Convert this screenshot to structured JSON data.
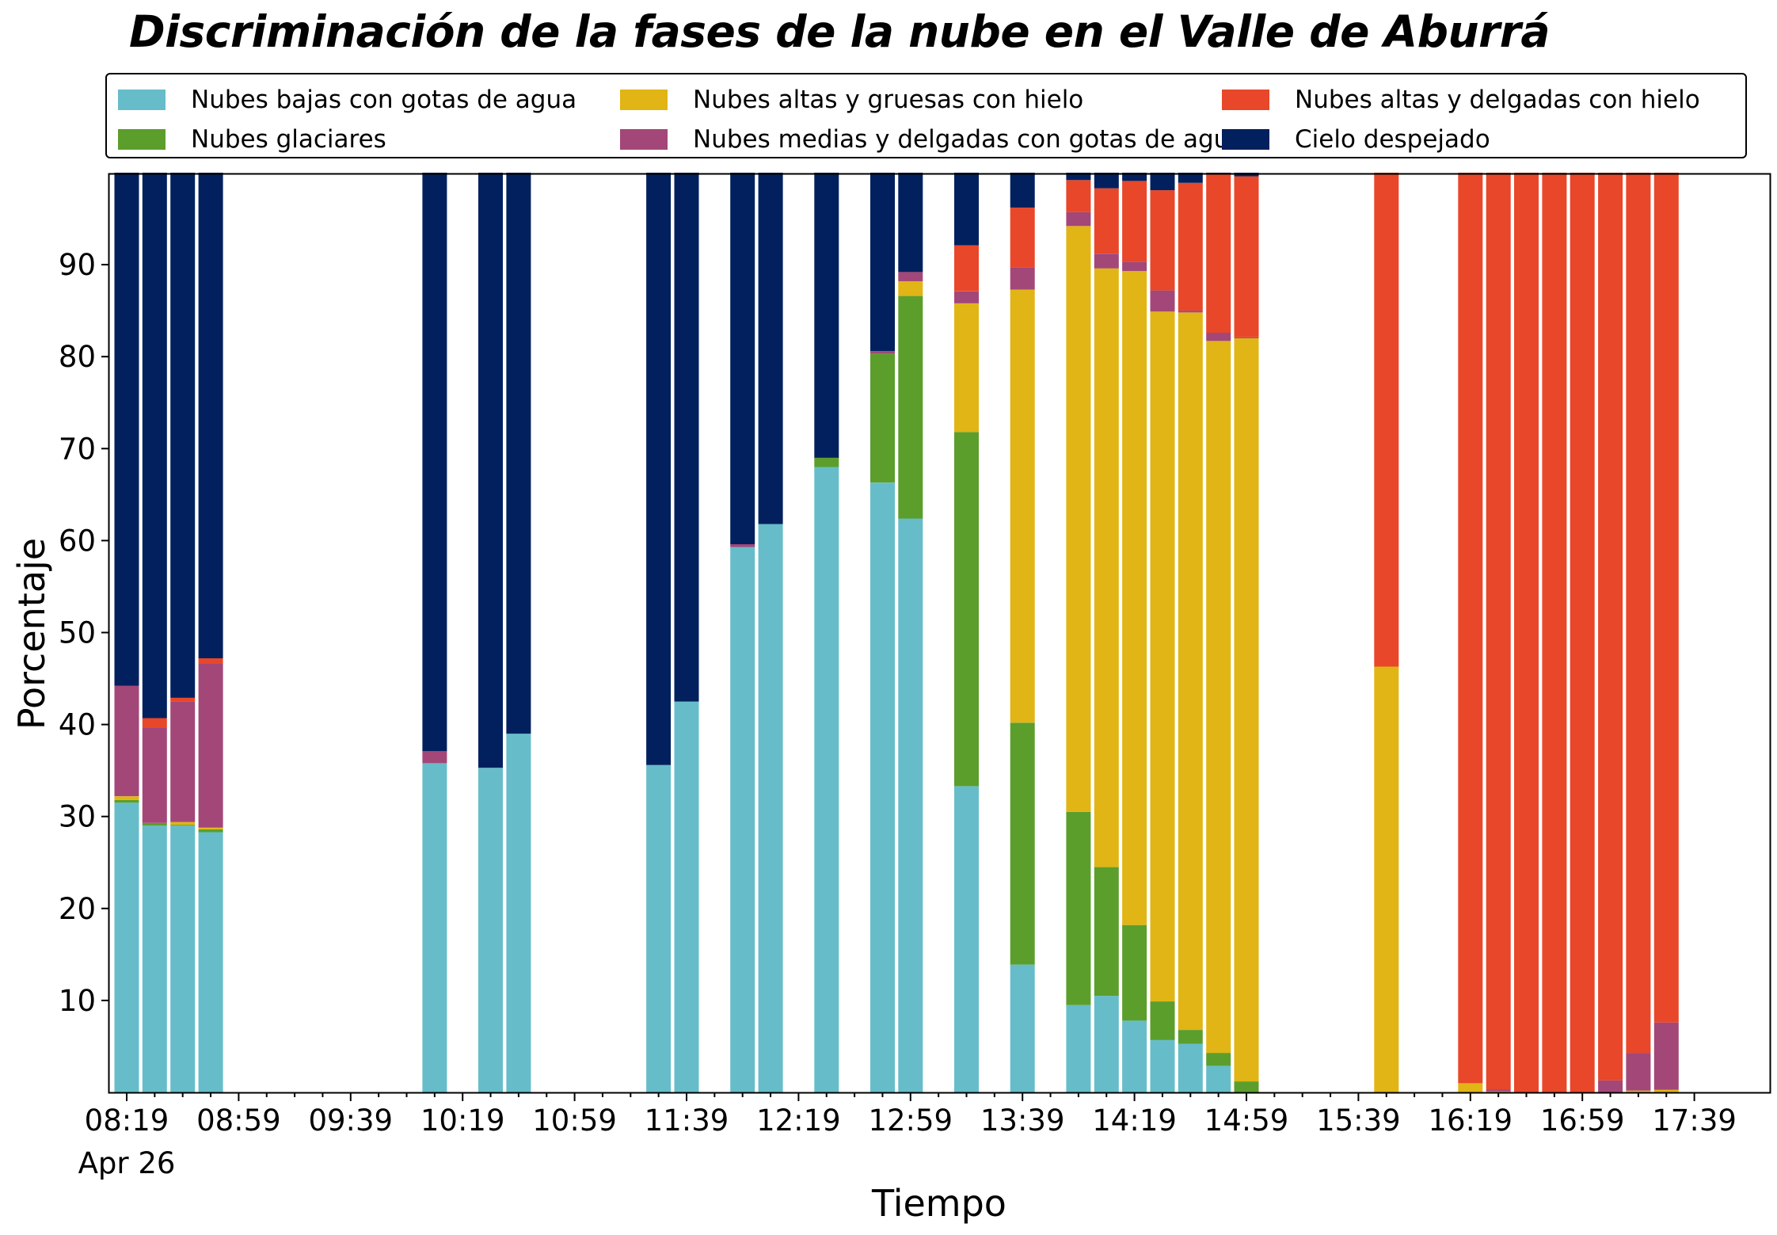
{
  "chart_data": {
    "type": "bar",
    "stacked": true,
    "title": "Discriminación de la fases de la nube en el Valle de Aburrá",
    "xlabel": "Tiempo",
    "ylabel": "Porcentaje",
    "ylim": [
      0,
      100
    ],
    "yticks": [
      10,
      20,
      30,
      40,
      50,
      60,
      70,
      80,
      90
    ],
    "grid": false,
    "legend_position": "top",
    "x_tick_labels": [
      "08:19",
      "08:59",
      "09:39",
      "10:19",
      "10:59",
      "11:39",
      "12:19",
      "12:59",
      "13:39",
      "14:19",
      "14:59",
      "15:39",
      "16:19",
      "16:59",
      "17:39"
    ],
    "x_date_label": "Apr 26",
    "x_unit": "minutes since 08:19",
    "x": [
      0,
      10,
      20,
      30,
      110,
      130,
      140,
      190,
      200,
      220,
      230,
      250,
      270,
      280,
      300,
      320,
      330,
      340,
      350,
      360,
      370,
      380,
      390,
      400,
      450,
      480,
      490,
      500,
      510,
      520,
      530,
      540,
      550
    ],
    "series": [
      {
        "name": "Nubes bajas con gotas de agua",
        "color": "#66bdc9",
        "values": [
          31.5,
          29.0,
          29.0,
          28.3,
          35.8,
          35.3,
          39.0,
          35.6,
          42.5,
          59.3,
          61.8,
          68.0,
          66.3,
          62.4,
          33.3,
          13.9,
          0,
          9.5,
          10.5,
          7.8,
          5.7,
          5.3,
          2.9,
          0,
          0,
          0,
          0,
          0,
          0,
          0,
          0,
          0,
          0
        ]
      },
      {
        "name": "Nubes glaciares",
        "color": "#5c9e2c",
        "values": [
          0.3,
          0.3,
          0.1,
          0.3,
          0,
          0,
          0,
          0,
          0,
          0,
          0,
          1.0,
          14.0,
          24.2,
          38.5,
          26.3,
          0,
          21.0,
          14.0,
          10.4,
          4.2,
          1.5,
          1.4,
          1.2,
          0,
          0,
          0,
          0,
          0,
          0,
          0,
          0,
          0
        ]
      },
      {
        "name": "Nubes altas y gruesas con hielo",
        "color": "#e1b515",
        "values": [
          0.4,
          0,
          0.3,
          0.2,
          0,
          0,
          0,
          0,
          0,
          0,
          0,
          0,
          0,
          1.6,
          14.0,
          47.1,
          0,
          63.7,
          65.1,
          71.1,
          75.0,
          78.0,
          77.4,
          80.8,
          46.3,
          1.0,
          0.1,
          0,
          0,
          0,
          0,
          0.2,
          0.3
        ]
      },
      {
        "name": "Nubes medias y delgadas con gotas de agua",
        "color": "#a34778",
        "values": [
          12.0,
          10.4,
          13.1,
          17.8,
          1.3,
          0,
          0,
          0,
          0,
          0.3,
          0,
          0,
          0.3,
          1.0,
          1.3,
          2.4,
          0,
          1.5,
          1.6,
          1.0,
          2.3,
          0.2,
          0.9,
          0.1,
          0,
          0,
          0.2,
          0,
          0,
          0,
          1.3,
          4.1,
          7.3
        ]
      },
      {
        "name": "Nubes altas y delgadas con hielo",
        "color": "#e8472a",
        "values": [
          0,
          1.0,
          0.4,
          0.6,
          0,
          0,
          0,
          0,
          0,
          0,
          0,
          0,
          0,
          0,
          5.0,
          6.5,
          0,
          3.5,
          7.1,
          8.8,
          10.9,
          13.9,
          17.3,
          17.5,
          53.7,
          99.0,
          99.7,
          100.0,
          100.0,
          100.0,
          98.7,
          95.7,
          92.4
        ]
      },
      {
        "name": "Cielo despejado",
        "color": "#03205e",
        "values": [
          55.8,
          59.3,
          57.1,
          52.8,
          62.9,
          64.7,
          61.0,
          64.4,
          57.5,
          40.4,
          38.2,
          31.0,
          19.4,
          10.8,
          7.9,
          3.8,
          0,
          0.8,
          1.7,
          0.9,
          1.9,
          1.1,
          0.1,
          0.4,
          0,
          0,
          0,
          0,
          0,
          0,
          0,
          0,
          0
        ]
      }
    ]
  }
}
